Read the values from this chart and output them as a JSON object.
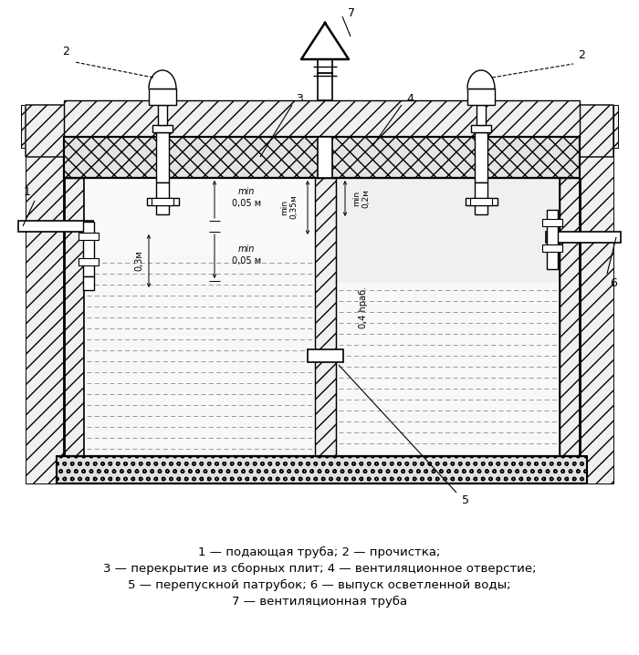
{
  "bg_color": "#ffffff",
  "caption_line1": "1 — подающая труба; 2 — прочистка;",
  "caption_line2": "3 — перекрытие из сборных плит; 4 — вентиляционное отверстие;",
  "caption_line3": "5 — перепускной патрубок; 6 — выпуск осветленной воды;",
  "caption_line4": "7 — вентиляционная труба"
}
